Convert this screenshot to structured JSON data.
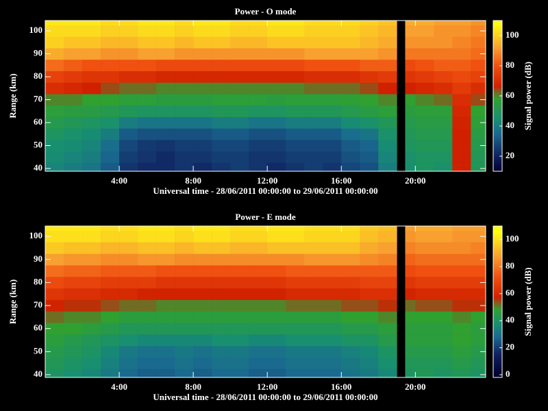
{
  "chart_data": [
    {
      "type": "heatmap",
      "title": "Power - O mode",
      "xlabel": "Universal time - 28/06/2011 00:00:00 to 29/06/2011 00:00:00",
      "ylabel": "Range (km)",
      "colorbar_label": "Signal power (dB)",
      "x_edges": [
        0,
        1,
        2,
        3,
        4,
        5,
        6,
        7,
        8,
        9,
        10,
        11,
        12,
        13,
        14,
        15,
        16,
        17,
        18,
        19,
        19.45,
        20,
        21,
        22,
        23,
        24
      ],
      "y": [
        40,
        45,
        50,
        55,
        60,
        65,
        70,
        75,
        80,
        85,
        90,
        95,
        100,
        105
      ],
      "z": [
        [
          42,
          40,
          38,
          32,
          24,
          22,
          22,
          24,
          22,
          24,
          26,
          24,
          22,
          24,
          26,
          24,
          28,
          30,
          40,
          null,
          45,
          48,
          46,
          66,
          50
        ],
        [
          44,
          42,
          40,
          34,
          26,
          24,
          22,
          24,
          24,
          26,
          26,
          24,
          24,
          26,
          26,
          26,
          30,
          32,
          42,
          null,
          46,
          48,
          48,
          66,
          50
        ],
        [
          45,
          44,
          42,
          36,
          28,
          25,
          24,
          26,
          26,
          28,
          28,
          26,
          26,
          28,
          28,
          28,
          32,
          34,
          44,
          null,
          48,
          50,
          50,
          66,
          52
        ],
        [
          48,
          46,
          44,
          40,
          32,
          30,
          30,
          30,
          30,
          32,
          32,
          30,
          30,
          32,
          32,
          32,
          36,
          38,
          46,
          null,
          50,
          52,
          52,
          66,
          54
        ],
        [
          52,
          50,
          48,
          46,
          40,
          38,
          38,
          38,
          38,
          40,
          40,
          38,
          38,
          40,
          40,
          40,
          44,
          46,
          50,
          null,
          52,
          54,
          54,
          67,
          56
        ],
        [
          56,
          55,
          54,
          52,
          50,
          48,
          48,
          48,
          48,
          50,
          50,
          48,
          48,
          50,
          50,
          50,
          52,
          54,
          56,
          null,
          55,
          56,
          56,
          68,
          58
        ],
        [
          60,
          60,
          58,
          58,
          56,
          56,
          55,
          55,
          55,
          56,
          56,
          56,
          55,
          56,
          56,
          56,
          57,
          58,
          60,
          null,
          58,
          60,
          62,
          70,
          64
        ],
        [
          70,
          68,
          66,
          64,
          62,
          62,
          60,
          60,
          60,
          60,
          60,
          60,
          60,
          60,
          62,
          62,
          62,
          64,
          66,
          null,
          66,
          68,
          70,
          74,
          70
        ],
        [
          76,
          74,
          72,
          72,
          70,
          70,
          68,
          68,
          68,
          68,
          68,
          68,
          68,
          68,
          70,
          70,
          70,
          72,
          74,
          null,
          72,
          74,
          76,
          78,
          76
        ],
        [
          84,
          82,
          80,
          80,
          80,
          80,
          78,
          78,
          78,
          78,
          78,
          78,
          78,
          78,
          80,
          80,
          80,
          82,
          82,
          null,
          78,
          80,
          82,
          82,
          80
        ],
        [
          94,
          92,
          92,
          90,
          90,
          92,
          92,
          90,
          90,
          90,
          90,
          90,
          90,
          90,
          92,
          92,
          92,
          92,
          90,
          null,
          86,
          86,
          86,
          86,
          84
        ],
        [
          100,
          98,
          98,
          96,
          96,
          98,
          98,
          96,
          98,
          98,
          96,
          96,
          98,
          98,
          98,
          98,
          98,
          96,
          94,
          null,
          90,
          90,
          90,
          88,
          86
        ],
        [
          102,
          102,
          102,
          100,
          100,
          102,
          102,
          100,
          102,
          102,
          100,
          100,
          102,
          102,
          100,
          100,
          100,
          98,
          96,
          null,
          92,
          92,
          90,
          90,
          88
        ],
        [
          104,
          104,
          104,
          102,
          102,
          104,
          104,
          102,
          104,
          104,
          102,
          102,
          104,
          104,
          102,
          102,
          102,
          100,
          98,
          null,
          94,
          94,
          92,
          92,
          90
        ]
      ],
      "xlim": [
        0,
        23.8
      ],
      "ylim": [
        38.8,
        104.5
      ],
      "xticks": [
        {
          "value": 4,
          "label": "4:00"
        },
        {
          "value": 8,
          "label": "8:00"
        },
        {
          "value": 12,
          "label": "12:00"
        },
        {
          "value": 16,
          "label": "16:00"
        },
        {
          "value": 20,
          "label": "20:00"
        }
      ],
      "yticks": [
        40,
        50,
        60,
        70,
        80,
        90,
        100
      ],
      "clim": [
        10,
        110
      ],
      "cticks": [
        20,
        40,
        60,
        80,
        100
      ],
      "colormap": [
        [
          10,
          "#000030"
        ],
        [
          20,
          "#102060"
        ],
        [
          35,
          "#1a6a90"
        ],
        [
          45,
          "#189070"
        ],
        [
          58,
          "#30a030"
        ],
        [
          63,
          "#806020"
        ],
        [
          66,
          "#d02000"
        ],
        [
          80,
          "#f05010"
        ],
        [
          92,
          "#f8a030"
        ],
        [
          108,
          "#ffff10"
        ]
      ]
    },
    {
      "type": "heatmap",
      "title": "Power - E mode",
      "xlabel": "Universal time - 28/06/2011 00:00:00 to 29/06/2011 00:00:00",
      "ylabel": "Range (km)",
      "colorbar_label": "Signal power (dB)",
      "x_edges": [
        0,
        1,
        2,
        3,
        4,
        5,
        6,
        7,
        8,
        9,
        10,
        11,
        12,
        13,
        14,
        15,
        16,
        17,
        18,
        19,
        19.45,
        20,
        21,
        22,
        23,
        24
      ],
      "y": [
        40,
        45,
        50,
        55,
        60,
        65,
        70,
        75,
        80,
        85,
        90,
        95,
        100,
        105
      ],
      "z": [
        [
          40,
          38,
          36,
          32,
          28,
          26,
          26,
          28,
          26,
          28,
          28,
          26,
          26,
          28,
          28,
          28,
          30,
          32,
          36,
          null,
          40,
          42,
          40,
          42,
          40
        ],
        [
          42,
          40,
          38,
          34,
          30,
          28,
          28,
          30,
          28,
          30,
          30,
          28,
          28,
          30,
          30,
          30,
          32,
          34,
          38,
          null,
          42,
          42,
          42,
          44,
          42
        ],
        [
          44,
          42,
          40,
          36,
          32,
          30,
          30,
          32,
          30,
          32,
          32,
          30,
          30,
          32,
          32,
          32,
          34,
          36,
          40,
          null,
          44,
          44,
          44,
          46,
          44
        ],
        [
          46,
          44,
          42,
          40,
          38,
          36,
          36,
          36,
          36,
          38,
          38,
          36,
          36,
          38,
          38,
          38,
          40,
          40,
          44,
          null,
          46,
          46,
          46,
          48,
          46
        ],
        [
          48,
          48,
          46,
          44,
          42,
          42,
          42,
          42,
          42,
          42,
          42,
          42,
          42,
          42,
          42,
          42,
          44,
          44,
          46,
          null,
          46,
          46,
          46,
          48,
          46
        ],
        [
          52,
          50,
          50,
          48,
          46,
          46,
          46,
          46,
          46,
          46,
          46,
          46,
          46,
          46,
          46,
          46,
          48,
          48,
          50,
          null,
          48,
          48,
          48,
          50,
          48
        ],
        [
          58,
          56,
          56,
          54,
          52,
          52,
          50,
          50,
          50,
          50,
          50,
          50,
          50,
          52,
          52,
          52,
          54,
          54,
          56,
          null,
          52,
          54,
          54,
          56,
          56
        ],
        [
          64,
          62,
          62,
          60,
          60,
          58,
          58,
          58,
          58,
          58,
          58,
          58,
          58,
          60,
          60,
          60,
          60,
          62,
          62,
          null,
          58,
          60,
          60,
          60,
          60
        ],
        [
          70,
          68,
          68,
          66,
          66,
          66,
          64,
          64,
          64,
          64,
          64,
          64,
          64,
          66,
          66,
          66,
          66,
          68,
          68,
          null,
          64,
          66,
          66,
          66,
          66
        ],
        [
          78,
          76,
          76,
          74,
          74,
          74,
          72,
          72,
          72,
          72,
          72,
          72,
          72,
          74,
          74,
          74,
          74,
          74,
          74,
          null,
          70,
          72,
          72,
          72,
          72
        ],
        [
          88,
          86,
          86,
          84,
          84,
          86,
          86,
          84,
          84,
          84,
          84,
          84,
          84,
          84,
          86,
          86,
          86,
          84,
          82,
          null,
          76,
          78,
          78,
          78,
          78
        ],
        [
          96,
          94,
          94,
          92,
          92,
          94,
          94,
          92,
          94,
          94,
          92,
          92,
          94,
          94,
          94,
          94,
          94,
          90,
          88,
          null,
          82,
          84,
          84,
          84,
          82
        ],
        [
          100,
          100,
          100,
          98,
          98,
          100,
          100,
          98,
          100,
          100,
          98,
          98,
          100,
          100,
          98,
          98,
          98,
          94,
          92,
          null,
          86,
          88,
          88,
          86,
          86
        ],
        [
          102,
          102,
          102,
          100,
          100,
          102,
          102,
          100,
          102,
          102,
          100,
          100,
          102,
          102,
          100,
          100,
          100,
          96,
          94,
          null,
          88,
          90,
          90,
          88,
          88
        ]
      ],
      "xlim": [
        0,
        23.8
      ],
      "ylim": [
        38.8,
        104.5
      ],
      "xticks": [
        {
          "value": 4,
          "label": "4:00"
        },
        {
          "value": 8,
          "label": "8:00"
        },
        {
          "value": 12,
          "label": "12:00"
        },
        {
          "value": 16,
          "label": "16:00"
        },
        {
          "value": 20,
          "label": "20:00"
        }
      ],
      "yticks": [
        40,
        50,
        60,
        70,
        80,
        90,
        100
      ],
      "clim": [
        -2,
        110
      ],
      "cticks": [
        0,
        20,
        40,
        60,
        80,
        100
      ],
      "colormap": [
        [
          0,
          "#000030"
        ],
        [
          15,
          "#102060"
        ],
        [
          28,
          "#1a6a90"
        ],
        [
          38,
          "#189070"
        ],
        [
          48,
          "#30a030"
        ],
        [
          53,
          "#806020"
        ],
        [
          57,
          "#d02000"
        ],
        [
          72,
          "#f05010"
        ],
        [
          88,
          "#f8a030"
        ],
        [
          106,
          "#ffff10"
        ]
      ]
    }
  ]
}
